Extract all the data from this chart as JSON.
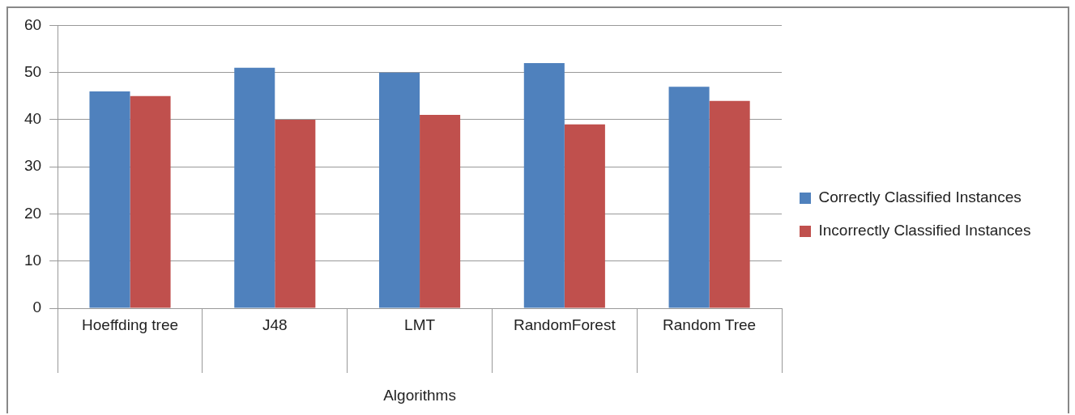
{
  "chart_data": {
    "type": "bar",
    "xlabel": "Algorithms",
    "categories": [
      "Hoeffding tree",
      "J48",
      "LMT",
      "RandomForest",
      "Random Tree"
    ],
    "series": [
      {
        "name": "Correctly Classified Instances",
        "color": "#4f81bd",
        "values": [
          46,
          51,
          50,
          52,
          47
        ]
      },
      {
        "name": "Incorrectly Classified Instances",
        "color": "#c0504d",
        "values": [
          45,
          40,
          41,
          39,
          44
        ]
      }
    ],
    "ylim": [
      0,
      60
    ],
    "yticks": [
      0,
      10,
      20,
      30,
      40,
      50,
      60
    ],
    "grid": "y",
    "legend": "right"
  }
}
